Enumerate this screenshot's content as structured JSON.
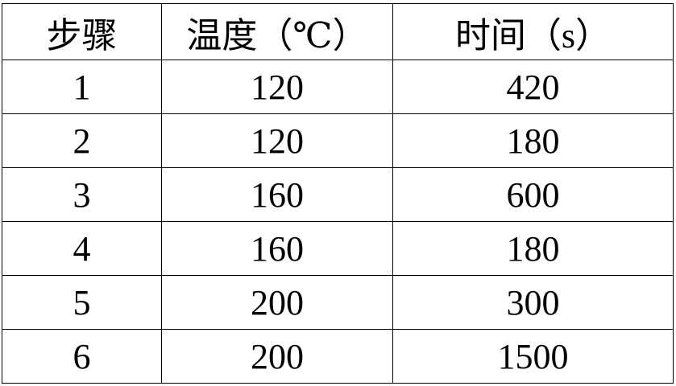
{
  "table": {
    "headers": [
      "步骤",
      "温度（℃）",
      "时间（s）"
    ],
    "rows": [
      [
        "1",
        "120",
        "420"
      ],
      [
        "2",
        "120",
        "180"
      ],
      [
        "3",
        "160",
        "600"
      ],
      [
        "4",
        "160",
        "180"
      ],
      [
        "5",
        "200",
        "300"
      ],
      [
        "6",
        "200",
        "1500"
      ]
    ]
  }
}
